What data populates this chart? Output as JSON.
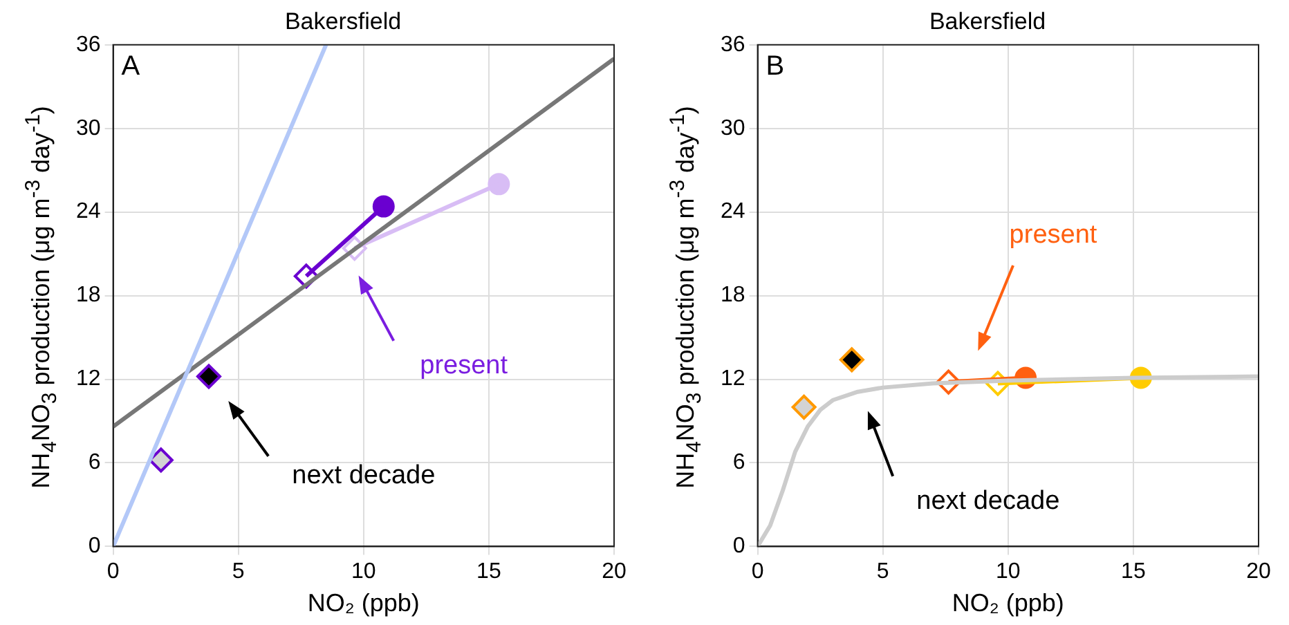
{
  "chart_data": [
    {
      "type": "line",
      "title": "Bakersfield",
      "xlabel": "NO₂ (ppb)",
      "ylabel": "NH$_{4}$NO$_{3}$ production (μg m$^{-3}$ day$^{-1}$)",
      "xlim": [
        0,
        20
      ],
      "xticks": [
        0,
        5,
        10,
        15,
        20
      ],
      "ylim": [
        0,
        36
      ],
      "yticks": [
        0,
        6,
        12,
        18,
        24,
        30,
        36
      ],
      "grid": true,
      "legend": false,
      "annotations": [
        "A",
        "present",
        "next decade"
      ],
      "series": [
        {
          "type": "line",
          "color": "#b3c8f8",
          "marker": "none",
          "x": [
            0,
            8.5
          ],
          "values": [
            0,
            36
          ]
        },
        {
          "type": "line",
          "color": "#777777",
          "marker": "none",
          "x": [
            0,
            20
          ],
          "values": [
            8.6,
            35
          ]
        },
        {
          "type": "line",
          "color": "#6a00d0",
          "marker": "none",
          "x": [
            7.71,
            10.8
          ],
          "values": [
            19.4,
            24.4
          ]
        },
        {
          "type": "line",
          "color": "#d8bdf5",
          "marker": "none",
          "x": [
            9.64,
            15.4
          ],
          "values": [
            21.4,
            26.0
          ]
        },
        {
          "type": "scatter",
          "color": "#6a00d0",
          "colors": [
            "#6a00d0"
          ],
          "marker": "circle",
          "x": [
            10.8
          ],
          "values": [
            24.4
          ]
        },
        {
          "type": "scatter",
          "color": "#d8bdf5",
          "colors": [
            "#d8bdf5"
          ],
          "marker": "circle",
          "x": [
            15.4
          ],
          "values": [
            26.0
          ]
        },
        {
          "type": "scatter",
          "color": "#6a00d0",
          "colors": [
            "#d3d3d3",
            "#000000",
            "#ffffff"
          ],
          "marker": "diamond",
          "x": [
            1.91,
            3.82,
            7.71
          ],
          "values": [
            6.2,
            12.2,
            19.4
          ]
        },
        {
          "type": "scatter",
          "color": "#d8bdf5",
          "colors": [
            "#ffffff"
          ],
          "marker": "diamond",
          "x": [
            9.64
          ],
          "values": [
            21.4
          ]
        }
      ]
    },
    {
      "type": "line",
      "title": "Bakersfield",
      "xlabel": "NO₂ (ppb)",
      "ylabel": "NH$_{4}$NO$_{3}$ production (μg m$^{-3}$ day$^{-1}$)",
      "xlim": [
        0,
        20
      ],
      "xticks": [
        0,
        5,
        10,
        15,
        20
      ],
      "ylim": [
        0,
        36
      ],
      "yticks": [
        0,
        6,
        12,
        18,
        24,
        30,
        36
      ],
      "grid": true,
      "legend": false,
      "annotations": [
        "B",
        "present",
        "next decade"
      ],
      "series": [
        {
          "type": "line",
          "color": "#cccccc",
          "marker": "none",
          "x": [
            0,
            0.5,
            1,
            1.5,
            2,
            2.5,
            3,
            4,
            5,
            7,
            10,
            15,
            20
          ],
          "values": [
            0,
            1.5,
            4,
            6.8,
            8.6,
            9.8,
            10.5,
            11.1,
            11.4,
            11.7,
            11.9,
            12.1,
            12.2
          ]
        },
        {
          "type": "line",
          "color": "#ff6010",
          "marker": "none",
          "x": [
            7.62,
            10.7
          ],
          "values": [
            11.8,
            12.1
          ]
        },
        {
          "type": "line",
          "color": "#ffcc00",
          "marker": "none",
          "x": [
            9.59,
            15.3
          ],
          "values": [
            11.7,
            12.1
          ]
        },
        {
          "type": "scatter",
          "color": "#ff6010",
          "colors": [
            "#ff6010"
          ],
          "marker": "circle",
          "x": [
            10.7
          ],
          "values": [
            12.1
          ]
        },
        {
          "type": "scatter",
          "color": "#ffcc00",
          "colors": [
            "#ffcc00"
          ],
          "marker": "circle",
          "x": [
            15.3
          ],
          "values": [
            12.1
          ]
        },
        {
          "type": "scatter",
          "color": "#ff9900",
          "colors": [
            "#d3d3d3",
            "#000000"
          ],
          "marker": "diamond",
          "x": [
            1.85,
            3.76
          ],
          "values": [
            10.0,
            13.4
          ]
        },
        {
          "type": "scatter",
          "color": "#ff6010",
          "colors": [
            "#ffffff"
          ],
          "marker": "diamond",
          "x": [
            7.62
          ],
          "values": [
            11.8
          ]
        },
        {
          "type": "scatter",
          "color": "#ffcc00",
          "colors": [
            "#ffffff"
          ],
          "marker": "diamond",
          "x": [
            9.59
          ],
          "values": [
            11.7
          ]
        }
      ]
    }
  ]
}
